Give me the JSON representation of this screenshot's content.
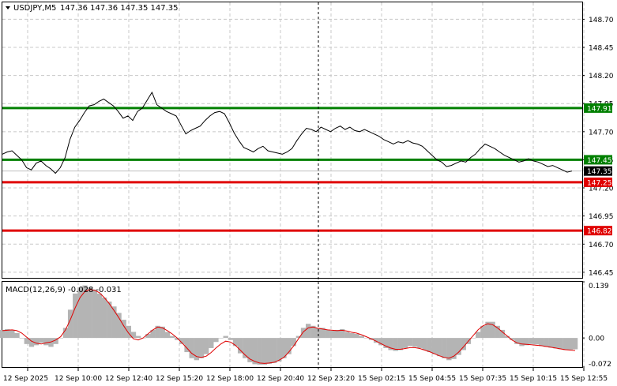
{
  "header": {
    "symbol": "USDJPY,M5",
    "ohlc": "147.36 147.36 147.35 147.35"
  },
  "macd_header": {
    "label": "MACD(12,26,9) -0.028 -0.031"
  },
  "colors": {
    "background": "#ffffff",
    "grid": "#c8c8c8",
    "price_line": "#000000",
    "support_resistance_green": "#008000",
    "support_resistance_red": "#e00000",
    "macd_histogram": "#b4b4b4",
    "macd_signal": "#e00000"
  },
  "chart_data": [
    {
      "type": "line",
      "name": "price",
      "ylim": [
        146.4,
        148.85
      ],
      "y_ticks": [
        "148.70",
        "148.45",
        "148.20",
        "147.95",
        "147.70",
        "147.45",
        "147.20",
        "146.95",
        "146.70",
        "146.45"
      ],
      "x_ticks": [
        "12 Sep 2025",
        "12 Sep 10:00",
        "12 Sep 12:40",
        "12 Sep 15:20",
        "12 Sep 18:00",
        "12 Sep 20:40",
        "12 Sep 23:20",
        "15 Sep 02:15",
        "15 Sep 04:55",
        "15 Sep 07:35",
        "15 Sep 10:15",
        "15 Sep 12:55"
      ],
      "grid": true,
      "horizontal_levels": [
        {
          "label": "147.91",
          "value": 147.91,
          "color": "#008000"
        },
        {
          "label": "147.45",
          "value": 147.45,
          "color": "#008000"
        },
        {
          "label": "147.25",
          "value": 147.25,
          "color": "#e00000"
        },
        {
          "label": "146.82",
          "value": 146.82,
          "color": "#e00000"
        }
      ],
      "current_price": {
        "label": "147.35",
        "value": 147.35
      },
      "values": [
        147.5,
        147.52,
        147.53,
        147.49,
        147.45,
        147.38,
        147.36,
        147.42,
        147.44,
        147.4,
        147.37,
        147.33,
        147.38,
        147.47,
        147.63,
        147.74,
        147.8,
        147.87,
        147.93,
        147.94,
        147.97,
        147.99,
        147.96,
        147.93,
        147.88,
        147.82,
        147.84,
        147.8,
        147.88,
        147.91,
        147.98,
        148.05,
        147.94,
        147.91,
        147.88,
        147.86,
        147.84,
        147.76,
        147.68,
        147.71,
        147.73,
        147.75,
        147.8,
        147.84,
        147.87,
        147.88,
        147.86,
        147.78,
        147.69,
        147.62,
        147.56,
        147.54,
        147.52,
        147.55,
        147.57,
        147.53,
        147.52,
        147.51,
        147.5,
        147.52,
        147.55,
        147.62,
        147.68,
        147.73,
        147.72,
        147.7,
        147.74,
        147.72,
        147.7,
        147.73,
        147.75,
        147.72,
        147.74,
        147.71,
        147.7,
        147.72,
        147.7,
        147.68,
        147.66,
        147.63,
        147.61,
        147.59,
        147.61,
        147.6,
        147.62,
        147.6,
        147.59,
        147.57,
        147.53,
        147.49,
        147.45,
        147.43,
        147.39,
        147.4,
        147.42,
        147.44,
        147.43,
        147.47,
        147.5,
        147.55,
        147.59,
        147.57,
        147.55,
        147.52,
        147.49,
        147.47,
        147.45,
        147.43,
        147.44,
        147.46,
        147.44,
        147.43,
        147.41,
        147.39,
        147.4,
        147.38,
        147.36,
        147.34,
        147.35
      ]
    },
    {
      "type": "bar",
      "name": "MACD",
      "ylim": [
        -0.072,
        0.139
      ],
      "y_ticks": [
        "0.139",
        "0.00",
        "-0.072"
      ],
      "histogram": [
        0.02,
        0.022,
        0.02,
        0.012,
        0.0,
        -0.015,
        -0.022,
        -0.018,
        -0.012,
        -0.018,
        -0.022,
        -0.015,
        0.0,
        0.025,
        0.07,
        0.11,
        0.125,
        0.13,
        0.125,
        0.12,
        0.11,
        0.1,
        0.09,
        0.078,
        0.062,
        0.045,
        0.03,
        0.015,
        0.005,
        0.0,
        0.01,
        0.02,
        0.03,
        0.028,
        0.015,
        0.005,
        -0.005,
        -0.015,
        -0.035,
        -0.05,
        -0.055,
        -0.05,
        -0.04,
        -0.025,
        -0.01,
        0.0,
        0.005,
        -0.005,
        -0.02,
        -0.038,
        -0.05,
        -0.06,
        -0.065,
        -0.066,
        -0.066,
        -0.064,
        -0.062,
        -0.058,
        -0.05,
        -0.04,
        -0.02,
        0.005,
        0.025,
        0.035,
        0.03,
        0.025,
        0.025,
        0.02,
        0.018,
        0.02,
        0.022,
        0.015,
        0.012,
        0.01,
        0.005,
        0.0,
        -0.005,
        -0.012,
        -0.018,
        -0.025,
        -0.03,
        -0.032,
        -0.03,
        -0.025,
        -0.02,
        -0.022,
        -0.025,
        -0.03,
        -0.035,
        -0.04,
        -0.045,
        -0.05,
        -0.055,
        -0.052,
        -0.042,
        -0.03,
        -0.015,
        0.0,
        0.015,
        0.03,
        0.04,
        0.04,
        0.03,
        0.02,
        0.005,
        -0.005,
        -0.015,
        -0.02,
        -0.018,
        -0.015,
        -0.016,
        -0.02,
        -0.022,
        -0.024,
        -0.026,
        -0.028,
        -0.03,
        -0.029,
        -0.028
      ],
      "signal": [
        0.018,
        0.019,
        0.02,
        0.018,
        0.012,
        0.002,
        -0.008,
        -0.013,
        -0.015,
        -0.012,
        -0.01,
        -0.005,
        0.003,
        0.02,
        0.045,
        0.075,
        0.1,
        0.115,
        0.12,
        0.118,
        0.112,
        0.1,
        0.085,
        0.068,
        0.05,
        0.03,
        0.012,
        -0.002,
        -0.005,
        0.0,
        0.01,
        0.02,
        0.027,
        0.025,
        0.018,
        0.01,
        0.0,
        -0.012,
        -0.025,
        -0.038,
        -0.046,
        -0.048,
        -0.045,
        -0.036,
        -0.025,
        -0.015,
        -0.008,
        -0.01,
        -0.018,
        -0.03,
        -0.042,
        -0.052,
        -0.058,
        -0.062,
        -0.063,
        -0.062,
        -0.06,
        -0.055,
        -0.048,
        -0.035,
        -0.02,
        -0.002,
        0.015,
        0.025,
        0.027,
        0.024,
        0.022,
        0.02,
        0.019,
        0.018,
        0.019,
        0.017,
        0.014,
        0.012,
        0.008,
        0.003,
        -0.002,
        -0.008,
        -0.014,
        -0.02,
        -0.025,
        -0.028,
        -0.028,
        -0.026,
        -0.024,
        -0.024,
        -0.026,
        -0.03,
        -0.034,
        -0.039,
        -0.044,
        -0.048,
        -0.05,
        -0.045,
        -0.035,
        -0.022,
        -0.008,
        0.006,
        0.02,
        0.03,
        0.035,
        0.033,
        0.025,
        0.015,
        0.005,
        -0.005,
        -0.012,
        -0.015,
        -0.016,
        -0.017,
        -0.018,
        -0.019,
        -0.021,
        -0.023,
        -0.025,
        -0.027,
        -0.029,
        -0.03,
        -0.031
      ]
    }
  ]
}
